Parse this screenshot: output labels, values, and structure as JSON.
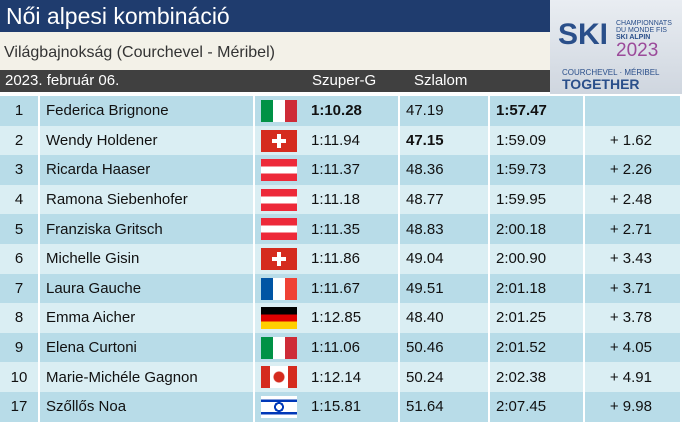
{
  "header": {
    "title": "Női alpesi kombináció",
    "subtitle": "Világbajnokság (Courchevel - Méribel)",
    "date": "2023. február 06.",
    "columns": [
      "Szuper-G",
      "Szlalom"
    ]
  },
  "logo": {
    "mark": "SKI",
    "line1": "CHAMPIONNATS",
    "line2": "DU MONDE FIS",
    "line3": "SKI ALPIN",
    "year": "2023",
    "place": "COURCHEVEL · MÉRIBEL",
    "motto": "TOGETHER"
  },
  "table": {
    "rows": [
      [
        "1",
        "Federica Brignone",
        "1:10.28",
        "47.19",
        "1:57.47"
      ],
      [
        "2",
        "Wendy Holdener",
        "1:11.94",
        "47.15",
        "1:59.09",
        "+ 1.62"
      ],
      [
        "3",
        "Ricarda Haaser",
        "1:11.37",
        "48.36",
        "1:59.73",
        "+ 2.26"
      ],
      [
        "4",
        "Ramona Siebenhofer",
        "1:11.18",
        "48.77",
        "1:59.95",
        "+ 2.48"
      ],
      [
        "5",
        "Franziska Gritsch",
        "1:11.35",
        "48.83",
        "2:00.18",
        "+ 2.71"
      ],
      [
        "6",
        "Michelle Gisin",
        "1:11.86",
        "49.04",
        "2:00.90",
        "+ 3.43"
      ],
      [
        "7",
        "Laura Gauche",
        "1:11.67",
        "49.51",
        "2:01.18",
        "+ 3.71"
      ],
      [
        "8",
        "Emma Aicher",
        "1:12.85",
        "48.40",
        "2:01.25",
        "+ 3.78"
      ],
      [
        "9",
        "Elena Curtoni",
        "1:11.06",
        "50.46",
        "2:01.52",
        "+ 4.05"
      ],
      [
        "10",
        "Marie-Michéle Gagnon",
        "1:12.14",
        "50.24",
        "2:02.38",
        "+ 4.91"
      ],
      [
        "17",
        "Szőllős Noa",
        "1:15.81",
        "51.64",
        "2:07.45",
        "+ 9.98"
      ]
    ]
  }
}
